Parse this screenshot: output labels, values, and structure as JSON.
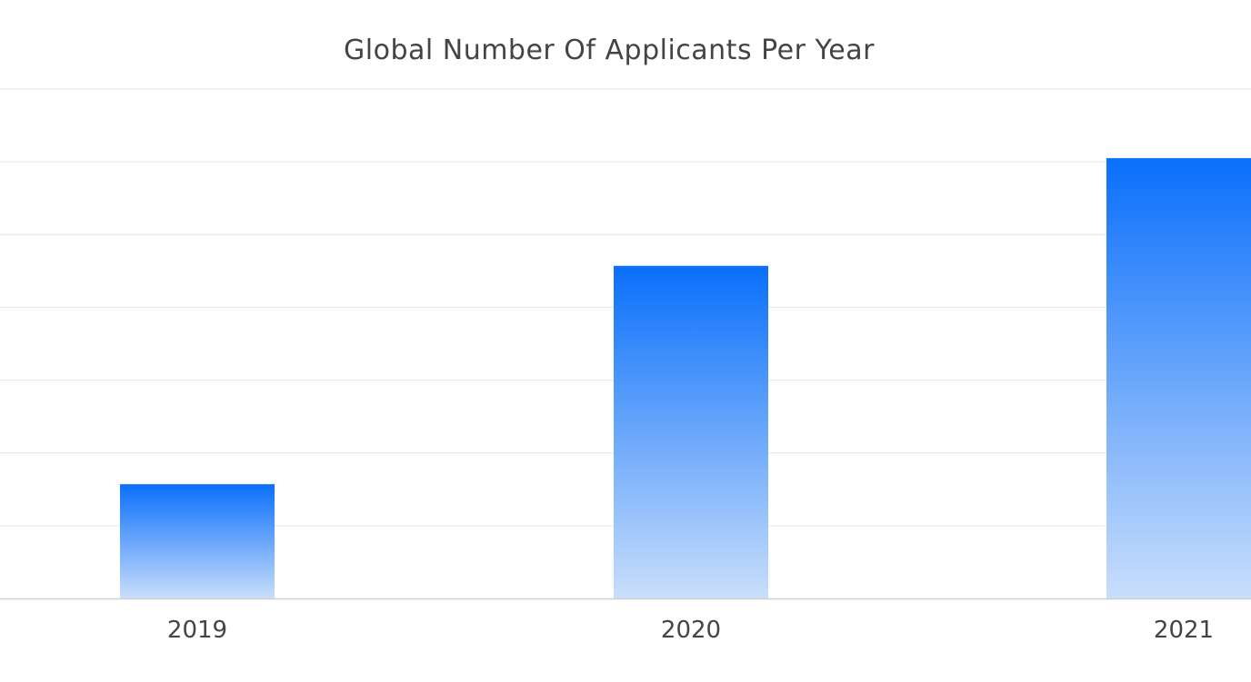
{
  "chart_data": {
    "type": "bar",
    "title": "Global Number Of Applicants Per Year",
    "categories": [
      "2019",
      "2020",
      "2021"
    ],
    "values": [
      1.57,
      4.57,
      6.05
    ],
    "xlabel": "",
    "ylabel": "",
    "ylim": [
      0,
      7
    ],
    "grid": true,
    "legend": "none",
    "colors": {
      "bar_top": "#0a6ffb",
      "bar_bottom": "#c9defb",
      "grid": "#e6e6e6",
      "axis": "#cfcfcf",
      "text": "#444444"
    }
  }
}
